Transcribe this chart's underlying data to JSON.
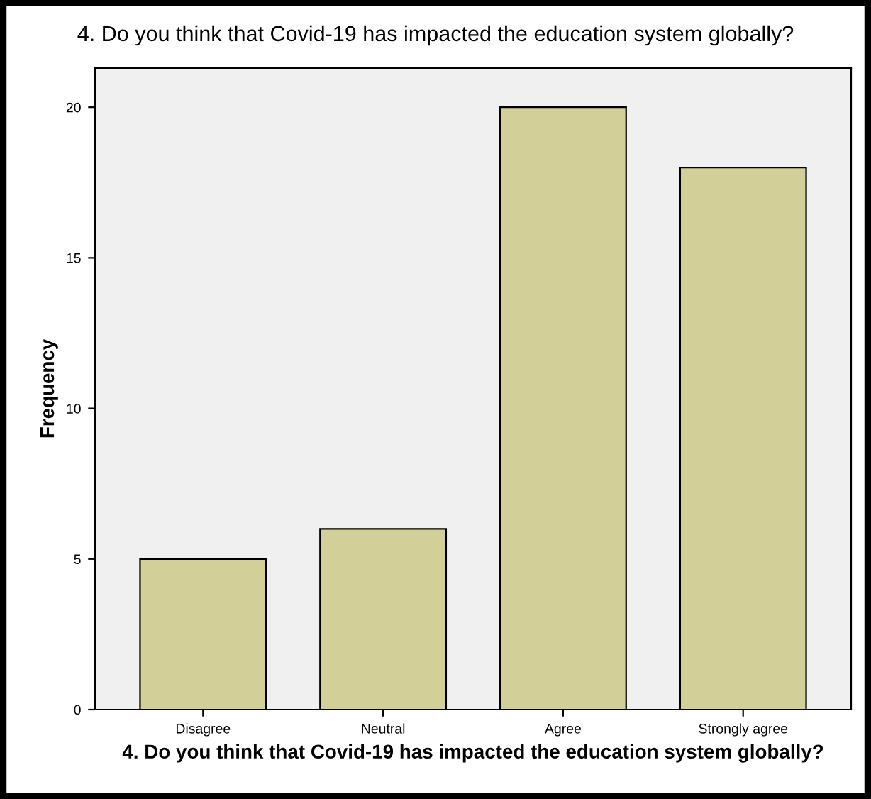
{
  "chart_data": {
    "type": "bar",
    "title": "4. Do you think that Covid-19 has impacted the education system globally?",
    "xlabel": "4. Do you think that Covid-19 has impacted the education system globally?",
    "ylabel": "Frequency",
    "categories": [
      "Disagree",
      "Neutral",
      "Agree",
      "Strongly agree"
    ],
    "values": [
      5,
      6,
      20,
      18
    ],
    "color": "#d3cf99",
    "ylim": [
      0,
      21.3
    ],
    "yticks": [
      0,
      5,
      10,
      15,
      20
    ],
    "grid": false
  }
}
